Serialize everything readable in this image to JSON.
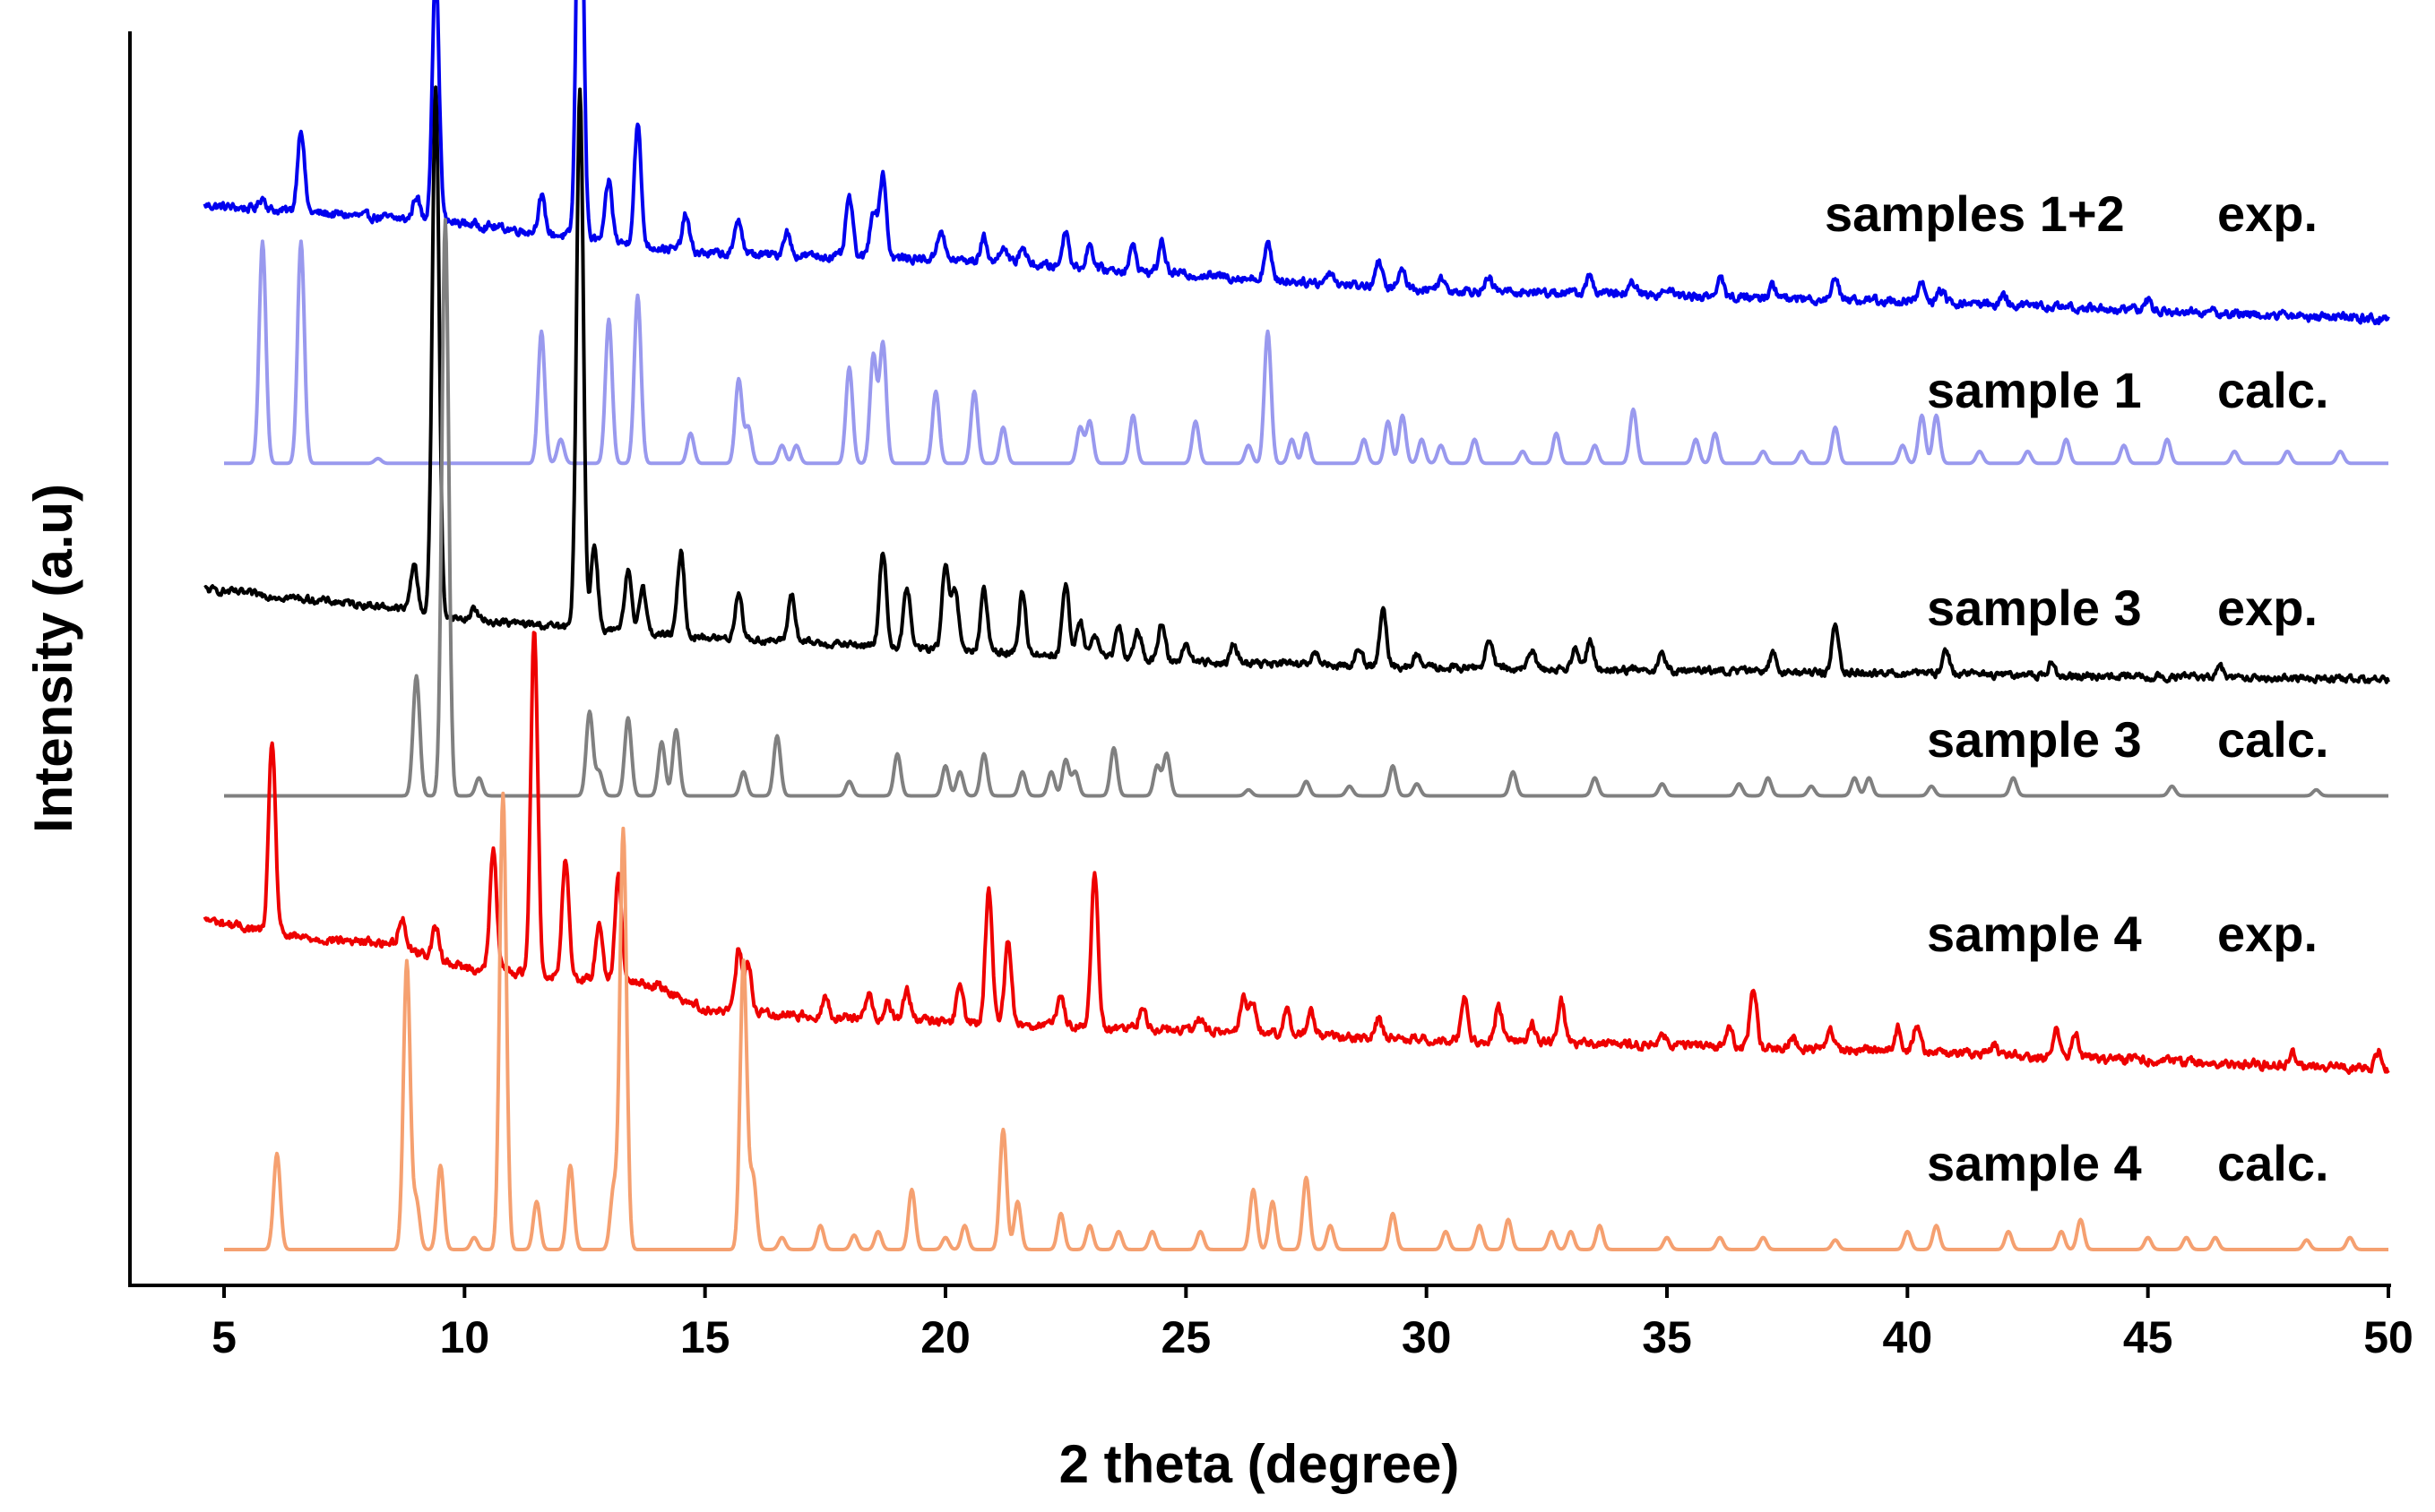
{
  "chart_data": {
    "type": "line",
    "title": "",
    "xlabel": "2 theta (degree)",
    "ylabel": "Intensity (a.u)",
    "xlim": [
      5,
      50
    ],
    "x_ticks": [
      5,
      10,
      15,
      20,
      25,
      30,
      35,
      40,
      45,
      50
    ],
    "x_tick_labels": [
      "5",
      "10",
      "15",
      "20",
      "25",
      "30",
      "35",
      "40",
      "45",
      "50"
    ],
    "y_ticks_shown": false,
    "grid": false,
    "legend": "labels placed at right end of each trace",
    "series": [
      {
        "id": "s12exp",
        "name": "samples 1+2",
        "tag": "exp.",
        "color": "#0000ee",
        "offset": 0.775,
        "start": 4.6,
        "noise": 0.006,
        "baseline": [
          [
            4.6,
            0.095
          ],
          [
            10,
            0.08
          ],
          [
            15,
            0.055
          ],
          [
            20,
            0.05
          ],
          [
            30,
            0.025
          ],
          [
            40,
            0.015
          ],
          [
            50,
            0.0
          ]
        ],
        "peaks": [
          [
            5.8,
            0.01
          ],
          [
            6.6,
            0.07
          ],
          [
            9.0,
            0.02
          ],
          [
            9.4,
            0.21
          ],
          [
            11.6,
            0.03
          ],
          [
            12.4,
            0.4
          ],
          [
            13.0,
            0.05
          ],
          [
            13.6,
            0.1
          ],
          [
            14.6,
            0.03
          ],
          [
            15.7,
            0.03
          ],
          [
            16.7,
            0.02
          ],
          [
            18.0,
            0.05
          ],
          [
            18.5,
            0.04
          ],
          [
            18.7,
            0.07
          ],
          [
            19.9,
            0.025
          ],
          [
            20.8,
            0.02
          ],
          [
            21.2,
            0.015
          ],
          [
            21.6,
            0.015
          ],
          [
            22.5,
            0.03
          ],
          [
            23.0,
            0.02
          ],
          [
            23.9,
            0.02
          ],
          [
            24.5,
            0.025
          ],
          [
            26.7,
            0.03
          ],
          [
            28.0,
            0.01
          ],
          [
            29.0,
            0.02
          ],
          [
            29.5,
            0.015
          ],
          [
            30.3,
            0.01
          ],
          [
            31.3,
            0.01
          ],
          [
            33.4,
            0.015
          ],
          [
            34.3,
            0.01
          ],
          [
            35.0,
            0.008
          ],
          [
            36.1,
            0.015
          ],
          [
            37.2,
            0.01
          ],
          [
            38.5,
            0.02
          ],
          [
            40.3,
            0.015
          ],
          [
            40.7,
            0.01
          ],
          [
            42.0,
            0.008
          ],
          [
            45.0,
            0.008
          ]
        ]
      },
      {
        "id": "s1calc",
        "name": "sample 1",
        "tag": "calc.",
        "color": "#9999ee",
        "offset": 0.655,
        "start": 5.0,
        "noise": 0,
        "baseline": [
          [
            5.0,
            0.0
          ],
          [
            50,
            0.0
          ]
        ],
        "peaks": [
          [
            5.8,
            0.185
          ],
          [
            6.6,
            0.185
          ],
          [
            8.2,
            0.004
          ],
          [
            11.6,
            0.11
          ],
          [
            12.0,
            0.02
          ],
          [
            13.0,
            0.12
          ],
          [
            13.6,
            0.14
          ],
          [
            14.7,
            0.025
          ],
          [
            15.7,
            0.07
          ],
          [
            15.9,
            0.03
          ],
          [
            16.6,
            0.015
          ],
          [
            16.9,
            0.015
          ],
          [
            18.0,
            0.08
          ],
          [
            18.5,
            0.09
          ],
          [
            18.7,
            0.1
          ],
          [
            19.8,
            0.06
          ],
          [
            20.6,
            0.06
          ],
          [
            21.2,
            0.03
          ],
          [
            22.8,
            0.03
          ],
          [
            23.0,
            0.035
          ],
          [
            23.9,
            0.04
          ],
          [
            25.2,
            0.035
          ],
          [
            26.3,
            0.015
          ],
          [
            26.7,
            0.11
          ],
          [
            27.2,
            0.02
          ],
          [
            27.5,
            0.025
          ],
          [
            28.7,
            0.02
          ],
          [
            29.2,
            0.035
          ],
          [
            29.5,
            0.04
          ],
          [
            29.9,
            0.02
          ],
          [
            30.3,
            0.015
          ],
          [
            31.0,
            0.02
          ],
          [
            32.0,
            0.01
          ],
          [
            32.7,
            0.025
          ],
          [
            33.5,
            0.015
          ],
          [
            34.3,
            0.045
          ],
          [
            35.6,
            0.02
          ],
          [
            36.0,
            0.025
          ],
          [
            37.0,
            0.01
          ],
          [
            37.8,
            0.01
          ],
          [
            38.5,
            0.03
          ],
          [
            39.9,
            0.015
          ],
          [
            40.3,
            0.04
          ],
          [
            40.6,
            0.04
          ],
          [
            41.5,
            0.01
          ],
          [
            42.5,
            0.01
          ],
          [
            43.3,
            0.02
          ],
          [
            44.5,
            0.015
          ],
          [
            45.4,
            0.02
          ],
          [
            46.8,
            0.01
          ],
          [
            47.9,
            0.01
          ],
          [
            49.0,
            0.01
          ]
        ]
      },
      {
        "id": "s3exp",
        "name": "sample 3",
        "tag": "exp.",
        "color": "#000000",
        "offset": 0.475,
        "start": 4.6,
        "noise": 0.005,
        "baseline": [
          [
            4.6,
            0.075
          ],
          [
            8.5,
            0.06
          ],
          [
            10,
            0.05
          ],
          [
            15,
            0.035
          ],
          [
            20,
            0.025
          ],
          [
            25,
            0.015
          ],
          [
            30,
            0.01
          ],
          [
            50,
            0.0
          ]
        ],
        "peaks": [
          [
            8.95,
            0.04
          ],
          [
            9.4,
            0.44
          ],
          [
            10.2,
            0.01
          ],
          [
            12.4,
            0.45
          ],
          [
            12.7,
            0.07
          ],
          [
            13.4,
            0.05
          ],
          [
            13.7,
            0.04
          ],
          [
            14.5,
            0.07
          ],
          [
            15.7,
            0.04
          ],
          [
            16.8,
            0.04
          ],
          [
            18.7,
            0.08
          ],
          [
            19.2,
            0.05
          ],
          [
            20.0,
            0.07
          ],
          [
            20.2,
            0.05
          ],
          [
            20.8,
            0.05
          ],
          [
            21.6,
            0.05
          ],
          [
            22.5,
            0.06
          ],
          [
            22.8,
            0.03
          ],
          [
            23.1,
            0.02
          ],
          [
            23.6,
            0.025
          ],
          [
            24.0,
            0.025
          ],
          [
            24.5,
            0.03
          ],
          [
            25.0,
            0.015
          ],
          [
            26.0,
            0.015
          ],
          [
            27.7,
            0.01
          ],
          [
            28.6,
            0.015
          ],
          [
            29.1,
            0.045
          ],
          [
            29.8,
            0.01
          ],
          [
            31.3,
            0.025
          ],
          [
            32.2,
            0.015
          ],
          [
            33.1,
            0.02
          ],
          [
            33.4,
            0.025
          ],
          [
            34.9,
            0.015
          ],
          [
            37.2,
            0.015
          ],
          [
            38.5,
            0.04
          ],
          [
            40.8,
            0.02
          ],
          [
            43.0,
            0.01
          ],
          [
            46.5,
            0.008
          ]
        ]
      },
      {
        "id": "s3calc",
        "name": "sample 3",
        "tag": "calc.",
        "color": "#808080",
        "offset": 0.378,
        "start": 5.0,
        "noise": 0,
        "baseline": [
          [
            5.0,
            0.0
          ],
          [
            50,
            0.0
          ]
        ],
        "peaks": [
          [
            9.0,
            0.1
          ],
          [
            9.6,
            0.48
          ],
          [
            10.3,
            0.015
          ],
          [
            12.6,
            0.07
          ],
          [
            12.8,
            0.02
          ],
          [
            13.4,
            0.065
          ],
          [
            14.1,
            0.045
          ],
          [
            14.4,
            0.055
          ],
          [
            15.8,
            0.02
          ],
          [
            16.5,
            0.05
          ],
          [
            18.0,
            0.012
          ],
          [
            19.0,
            0.035
          ],
          [
            20.0,
            0.025
          ],
          [
            20.3,
            0.02
          ],
          [
            20.8,
            0.035
          ],
          [
            21.6,
            0.02
          ],
          [
            22.2,
            0.02
          ],
          [
            22.5,
            0.03
          ],
          [
            22.7,
            0.02
          ],
          [
            23.5,
            0.04
          ],
          [
            24.4,
            0.025
          ],
          [
            24.6,
            0.035
          ],
          [
            26.3,
            0.005
          ],
          [
            27.5,
            0.012
          ],
          [
            28.4,
            0.008
          ],
          [
            29.3,
            0.025
          ],
          [
            29.8,
            0.01
          ],
          [
            31.8,
            0.02
          ],
          [
            33.5,
            0.015
          ],
          [
            34.9,
            0.01
          ],
          [
            36.5,
            0.01
          ],
          [
            37.1,
            0.015
          ],
          [
            38.0,
            0.008
          ],
          [
            38.9,
            0.015
          ],
          [
            39.2,
            0.015
          ],
          [
            40.5,
            0.008
          ],
          [
            42.2,
            0.015
          ],
          [
            45.5,
            0.008
          ],
          [
            48.5,
            0.005
          ]
        ]
      },
      {
        "id": "s4exp",
        "name": "sample 4",
        "tag": "exp.",
        "color": "#ee0000",
        "offset": 0.15,
        "start": 4.6,
        "noise": 0.006,
        "baseline": [
          [
            4.6,
            0.125
          ],
          [
            6.5,
            0.11
          ],
          [
            8.5,
            0.105
          ],
          [
            10,
            0.085
          ],
          [
            14,
            0.07
          ],
          [
            15,
            0.05
          ],
          [
            17,
            0.045
          ],
          [
            20,
            0.04
          ],
          [
            30,
            0.025
          ],
          [
            40,
            0.015
          ],
          [
            50,
            0.0
          ]
        ],
        "peaks": [
          [
            6.0,
            0.16
          ],
          [
            8.7,
            0.025
          ],
          [
            9.4,
            0.025
          ],
          [
            10.6,
            0.1
          ],
          [
            11.45,
            0.29
          ],
          [
            12.1,
            0.1
          ],
          [
            12.8,
            0.05
          ],
          [
            13.2,
            0.09
          ],
          [
            15.7,
            0.05
          ],
          [
            15.9,
            0.04
          ],
          [
            17.5,
            0.015
          ],
          [
            18.4,
            0.02
          ],
          [
            18.8,
            0.015
          ],
          [
            19.2,
            0.025
          ],
          [
            20.3,
            0.03
          ],
          [
            20.9,
            0.11
          ],
          [
            21.3,
            0.07
          ],
          [
            22.4,
            0.025
          ],
          [
            23.1,
            0.13
          ],
          [
            24.1,
            0.02
          ],
          [
            25.3,
            0.01
          ],
          [
            26.2,
            0.03
          ],
          [
            26.4,
            0.025
          ],
          [
            27.1,
            0.02
          ],
          [
            27.6,
            0.02
          ],
          [
            29.0,
            0.015
          ],
          [
            30.8,
            0.035
          ],
          [
            31.5,
            0.03
          ],
          [
            32.2,
            0.015
          ],
          [
            32.8,
            0.035
          ],
          [
            34.9,
            0.01
          ],
          [
            36.3,
            0.015
          ],
          [
            36.8,
            0.05
          ],
          [
            37.6,
            0.01
          ],
          [
            38.4,
            0.015
          ],
          [
            39.8,
            0.02
          ],
          [
            40.2,
            0.025
          ],
          [
            41.8,
            0.01
          ],
          [
            43.1,
            0.025
          ],
          [
            43.5,
            0.02
          ],
          [
            48.0,
            0.01
          ],
          [
            49.8,
            0.015
          ]
        ]
      },
      {
        "id": "s4calc",
        "name": "sample 4",
        "tag": "calc.",
        "color": "#f5a070",
        "offset": 0.0,
        "start": 5.0,
        "noise": 0,
        "baseline": [
          [
            5.0,
            0.0
          ],
          [
            50,
            0.0
          ]
        ],
        "peaks": [
          [
            6.1,
            0.08
          ],
          [
            8.8,
            0.24
          ],
          [
            9.0,
            0.04
          ],
          [
            9.5,
            0.07
          ],
          [
            10.2,
            0.01
          ],
          [
            10.8,
            0.38
          ],
          [
            11.5,
            0.04
          ],
          [
            12.2,
            0.07
          ],
          [
            13.1,
            0.05
          ],
          [
            13.3,
            0.35
          ],
          [
            15.8,
            0.24
          ],
          [
            16.0,
            0.06
          ],
          [
            16.6,
            0.01
          ],
          [
            17.4,
            0.02
          ],
          [
            18.1,
            0.012
          ],
          [
            18.6,
            0.015
          ],
          [
            19.3,
            0.05
          ],
          [
            20.0,
            0.01
          ],
          [
            20.4,
            0.02
          ],
          [
            21.2,
            0.1
          ],
          [
            21.5,
            0.04
          ],
          [
            22.4,
            0.03
          ],
          [
            23.0,
            0.02
          ],
          [
            23.6,
            0.015
          ],
          [
            24.3,
            0.015
          ],
          [
            25.3,
            0.015
          ],
          [
            26.4,
            0.05
          ],
          [
            26.8,
            0.04
          ],
          [
            27.5,
            0.06
          ],
          [
            28.0,
            0.02
          ],
          [
            29.3,
            0.03
          ],
          [
            30.4,
            0.015
          ],
          [
            31.1,
            0.02
          ],
          [
            31.7,
            0.025
          ],
          [
            32.6,
            0.015
          ],
          [
            33.0,
            0.015
          ],
          [
            33.6,
            0.02
          ],
          [
            35.0,
            0.01
          ],
          [
            36.1,
            0.01
          ],
          [
            37.0,
            0.01
          ],
          [
            38.5,
            0.008
          ],
          [
            40.0,
            0.015
          ],
          [
            40.6,
            0.02
          ],
          [
            42.1,
            0.015
          ],
          [
            43.2,
            0.015
          ],
          [
            43.6,
            0.025
          ],
          [
            45.0,
            0.01
          ],
          [
            45.8,
            0.01
          ],
          [
            46.4,
            0.01
          ],
          [
            48.3,
            0.008
          ],
          [
            49.2,
            0.01
          ]
        ]
      }
    ]
  }
}
